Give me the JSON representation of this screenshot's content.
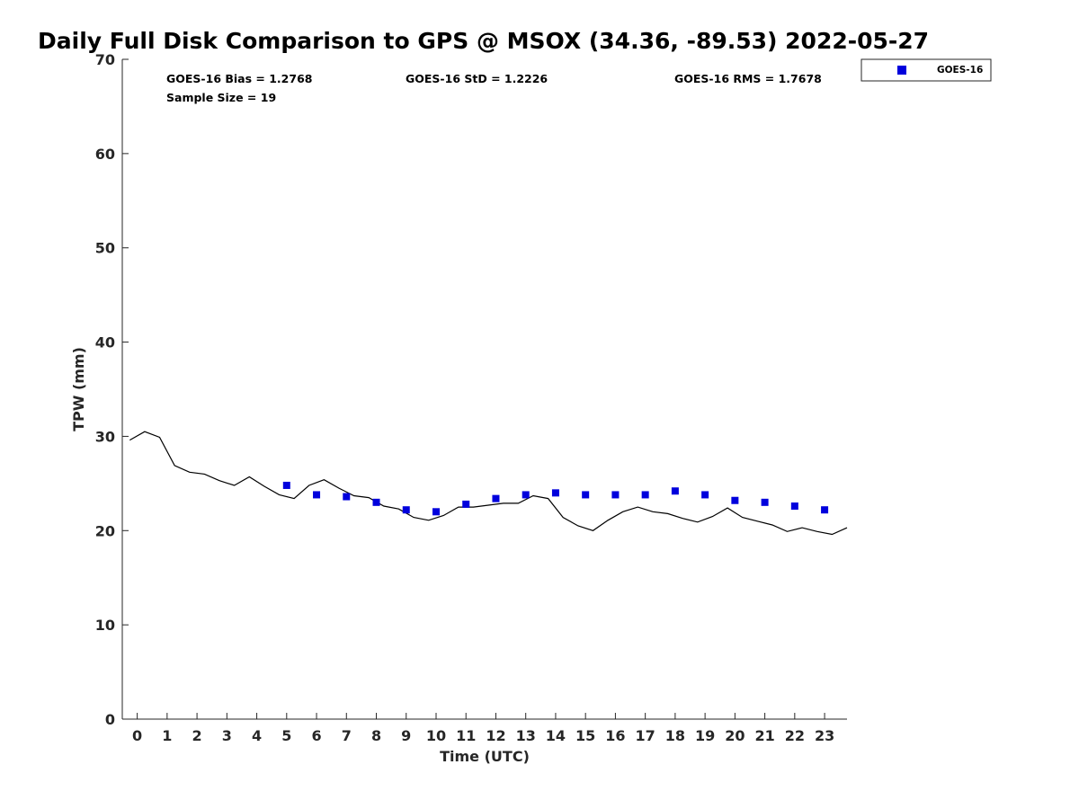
{
  "chart_data": {
    "type": "scatter",
    "title": "Daily Full Disk Comparison to GPS @ MSOX (34.36, -89.53) 2022-05-27",
    "xlabel": "Time (UTC)",
    "ylabel": "TPW (mm)",
    "xlim": [
      -0.5,
      23.75
    ],
    "ylim": [
      0,
      70
    ],
    "x_ticks": [
      0,
      1,
      2,
      3,
      4,
      5,
      6,
      7,
      8,
      9,
      10,
      11,
      12,
      13,
      14,
      15,
      16,
      17,
      18,
      19,
      20,
      21,
      22,
      23
    ],
    "y_ticks": [
      0,
      10,
      20,
      30,
      40,
      50,
      60,
      70
    ],
    "grid": false,
    "legend_position": "top-right",
    "stats": {
      "bias": "GOES-16 Bias = 1.2768",
      "std": "GOES-16 StD = 1.2226",
      "rms": "GOES-16 RMS = 1.7678",
      "sample_size": "Sample Size = 19"
    },
    "series": [
      {
        "name": "GOES-16",
        "kind": "scatter",
        "marker": "square",
        "color": "#0000dd",
        "x": [
          5,
          6,
          7,
          8,
          9,
          10,
          11,
          12,
          13,
          14,
          15,
          16,
          17,
          18,
          19,
          20,
          21,
          22,
          23
        ],
        "y": [
          24.8,
          23.8,
          23.6,
          23.0,
          22.2,
          22.0,
          22.8,
          23.4,
          23.8,
          24.0,
          23.8,
          23.8,
          23.8,
          24.2,
          23.8,
          23.2,
          23.0,
          22.6,
          22.2
        ]
      },
      {
        "kind": "line",
        "color": "#000000",
        "x": [
          -0.25,
          0.25,
          0.75,
          1.25,
          1.75,
          2.25,
          2.75,
          3.25,
          3.75,
          4.25,
          4.75,
          5.25,
          5.75,
          6.25,
          6.75,
          7.25,
          7.75,
          8.25,
          8.75,
          9.25,
          9.75,
          10.25,
          10.75,
          11.25,
          11.75,
          12.25,
          12.75,
          13.25,
          13.75,
          14.25,
          14.75,
          15.25,
          15.75,
          16.25,
          16.75,
          17.25,
          17.75,
          18.25,
          18.75,
          19.25,
          19.75,
          20.25,
          20.75,
          21.25,
          21.75,
          22.25,
          22.75,
          23.25,
          23.75
        ],
        "y": [
          29.6,
          30.5,
          29.9,
          26.9,
          26.2,
          26.0,
          25.3,
          24.8,
          25.7,
          24.7,
          23.8,
          23.4,
          24.8,
          25.4,
          24.5,
          23.7,
          23.5,
          22.6,
          22.3,
          21.4,
          21.1,
          21.6,
          22.5,
          22.5,
          22.7,
          22.9,
          22.9,
          23.7,
          23.4,
          21.4,
          20.5,
          20.0,
          21.1,
          22.0,
          22.5,
          22.0,
          21.8,
          21.3,
          20.9,
          21.5,
          22.4,
          21.4,
          21.0,
          20.6,
          19.9,
          20.3,
          19.9,
          19.6,
          20.3
        ]
      }
    ]
  }
}
